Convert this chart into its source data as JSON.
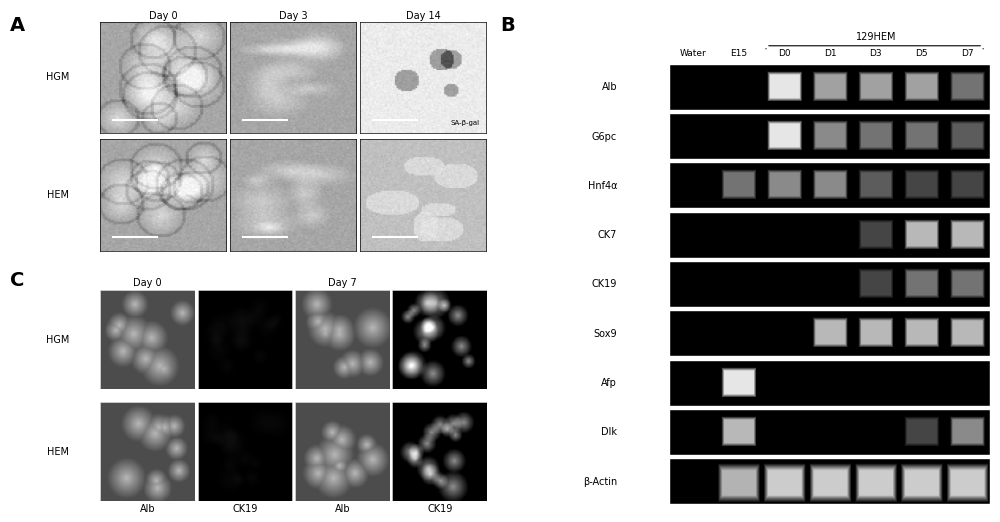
{
  "fig_width": 10.0,
  "fig_height": 5.22,
  "bg_color": "#ffffff",
  "panel_A": {
    "label": "A",
    "day_labels": [
      "Day 0",
      "Day 3",
      "Day 14"
    ],
    "row_labels": [
      "HGM",
      "HEM"
    ],
    "annotation": "SA-β-gal"
  },
  "panel_B": {
    "label": "B",
    "group_label": "129HEM",
    "col_labels": [
      "Water",
      "E15",
      "D0",
      "D1",
      "D3",
      "D5",
      "D7"
    ],
    "row_labels": [
      "Alb",
      "G6pc",
      "Hnf4α",
      "CK7",
      "CK19",
      "Sox9",
      "Afp",
      "Dlk",
      "β-Actin"
    ],
    "bands": {
      "Alb": [
        0,
        0,
        1,
        0.7,
        0.7,
        0.7,
        0.5
      ],
      "G6pc": [
        0,
        0,
        1,
        0.6,
        0.5,
        0.5,
        0.4
      ],
      "Hnf4a": [
        0,
        0.5,
        0.6,
        0.6,
        0.4,
        0.3,
        0.3
      ],
      "CK7": [
        0,
        0,
        0,
        0,
        0.3,
        0.8,
        0.8
      ],
      "CK19": [
        0,
        0,
        0,
        0,
        0.3,
        0.5,
        0.5
      ],
      "Sox9": [
        0,
        0,
        0,
        0.8,
        0.8,
        0.8,
        0.8
      ],
      "Afp": [
        0,
        1,
        0,
        0,
        0,
        0,
        0
      ],
      "Dlk": [
        0,
        0.8,
        0,
        0,
        0,
        0.3,
        0.6
      ],
      "b-Actin": [
        0,
        0.7,
        0.8,
        0.8,
        0.8,
        0.8,
        0.8
      ]
    }
  },
  "panel_C": {
    "label": "C",
    "day0_label": "Day 0",
    "day7_label": "Day 7",
    "row_labels": [
      "HGM",
      "HEM"
    ],
    "col_labels": [
      "Alb",
      "CK19",
      "Alb",
      "CK19"
    ]
  }
}
